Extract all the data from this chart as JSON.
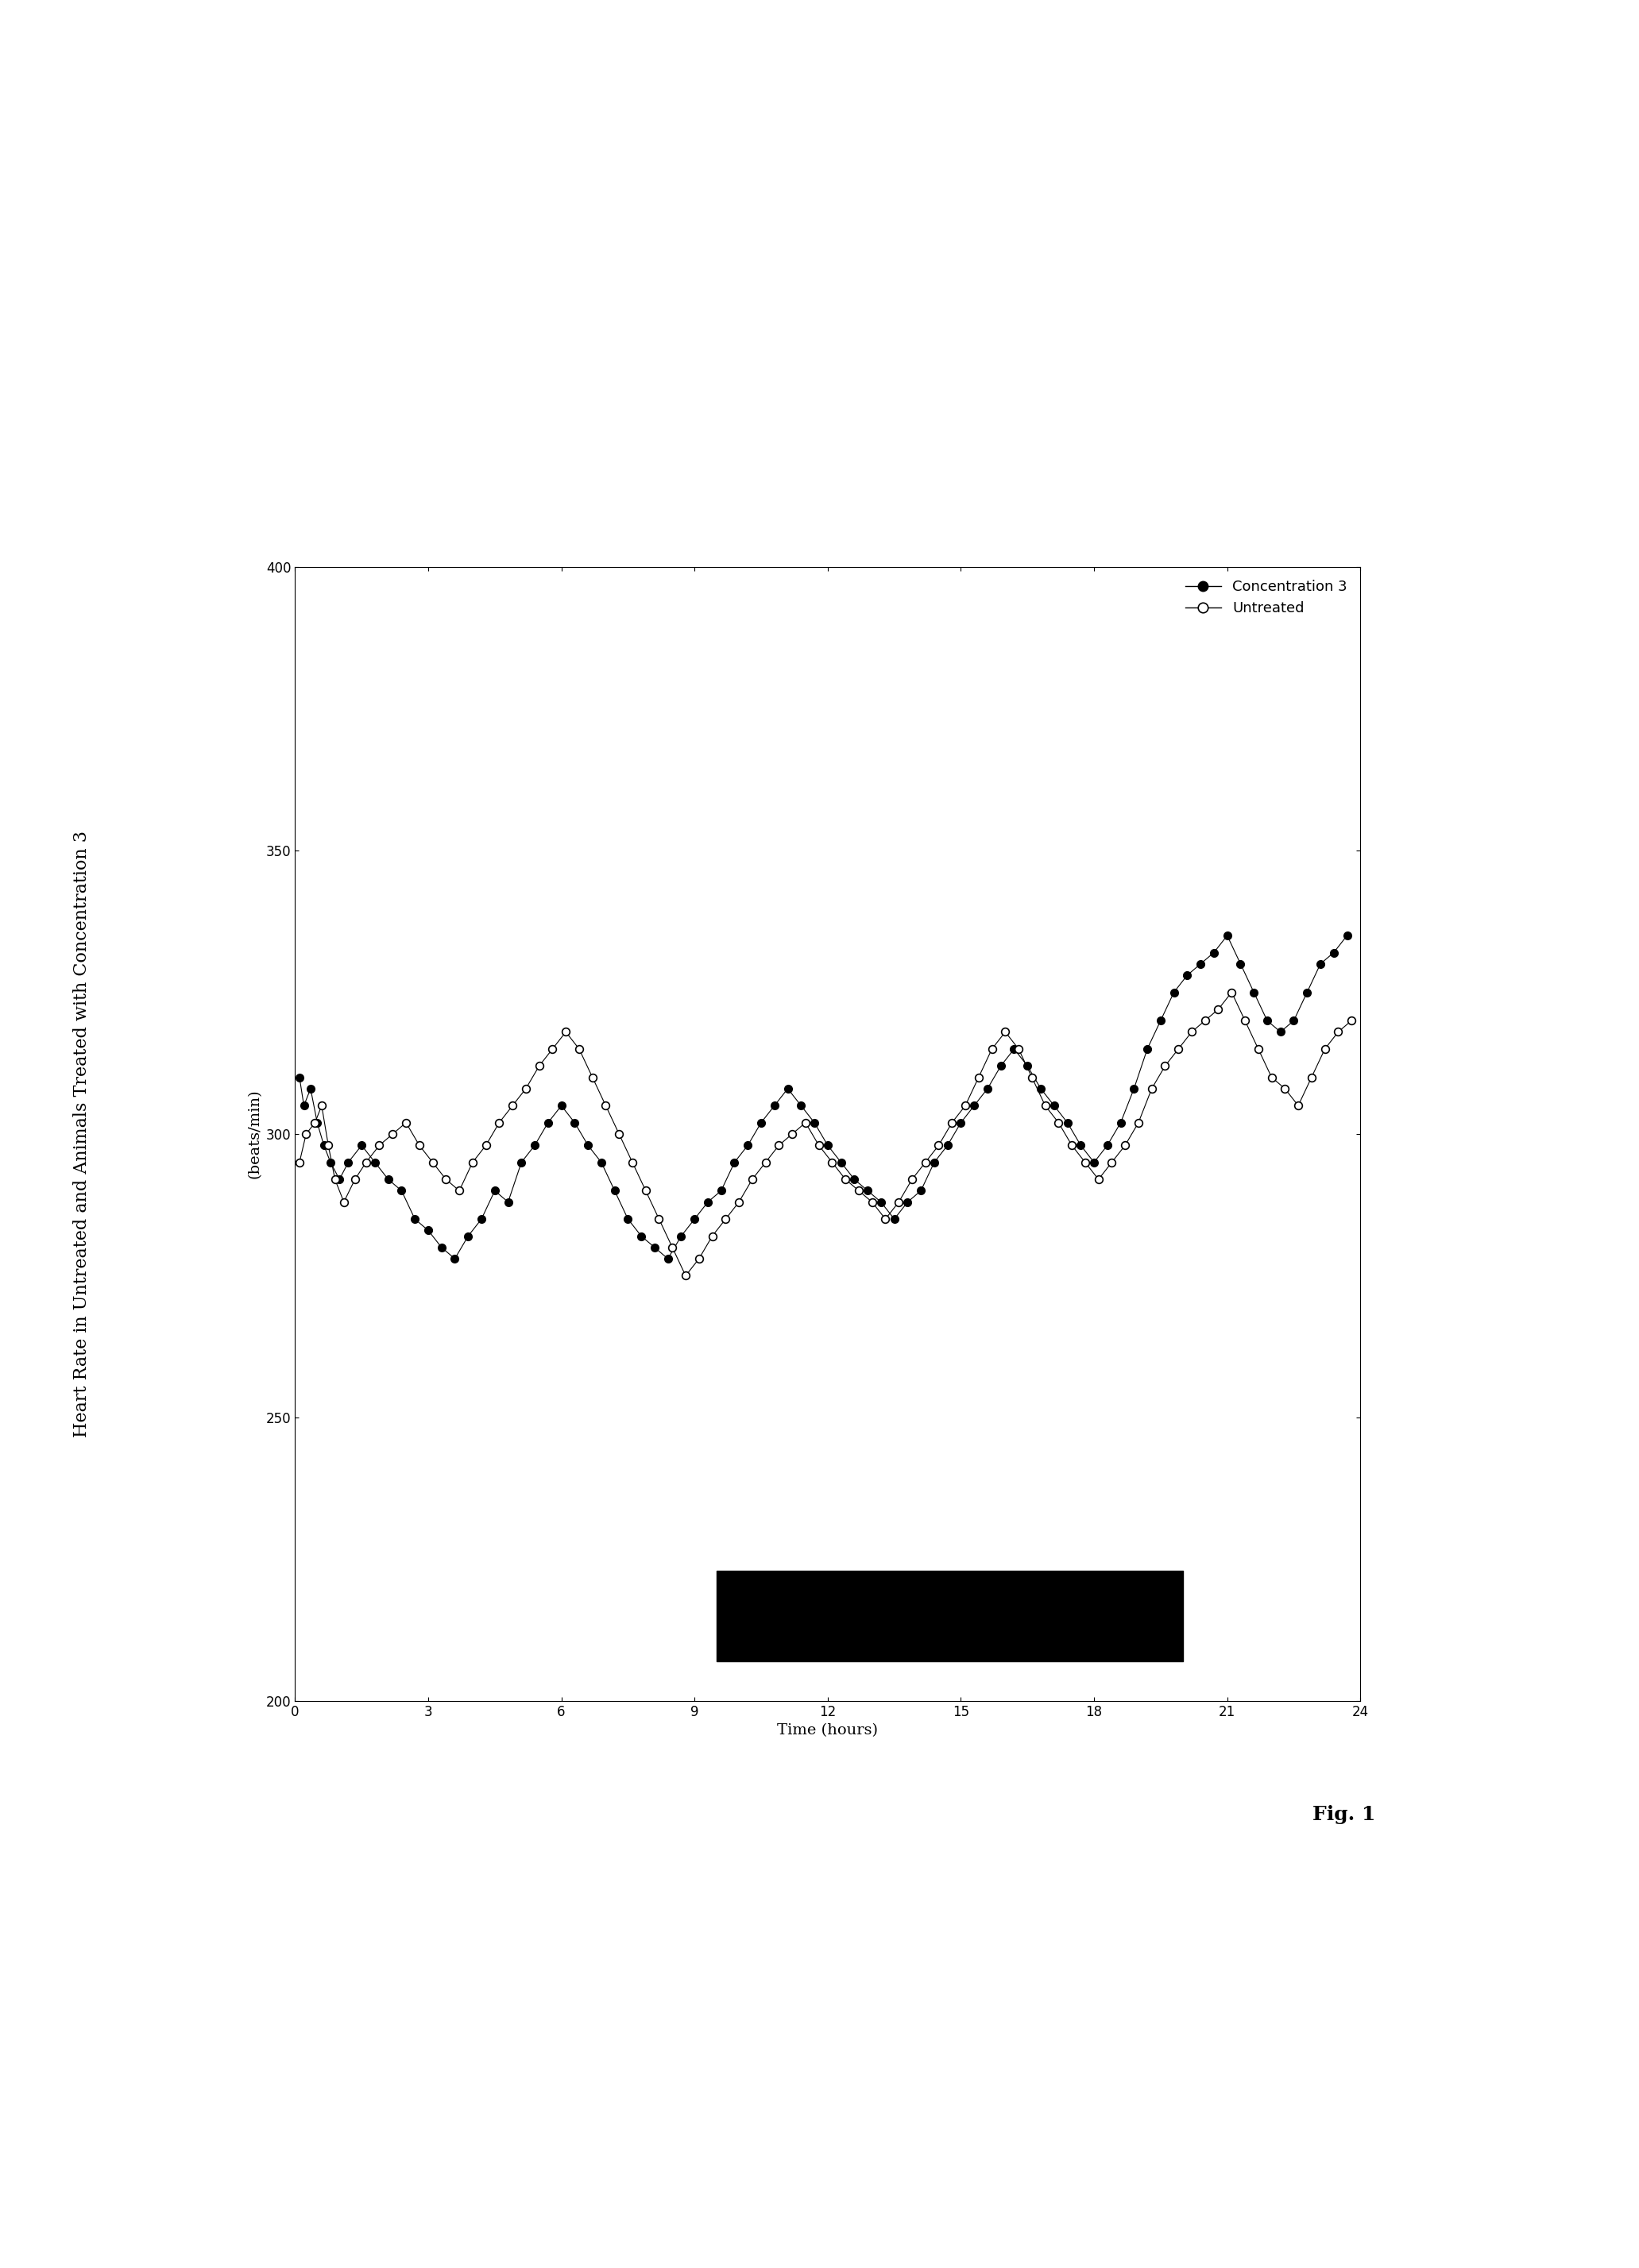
{
  "title": "Heart Rate in Untreated and Animals Treated with Concentration 3",
  "xlabel": "Time (hours)",
  "ylabel": "(beats/min)",
  "fig_label": "Fig. 1",
  "xlim": [
    0,
    24
  ],
  "ylim": [
    200,
    400
  ],
  "xticks": [
    0,
    3,
    6,
    9,
    12,
    15,
    18,
    21,
    24
  ],
  "yticks": [
    200,
    250,
    300,
    350,
    400
  ],
  "conc3_x": [
    0.1,
    0.2,
    0.35,
    0.5,
    0.65,
    0.8,
    1.0,
    1.2,
    1.5,
    1.8,
    2.1,
    2.4,
    2.7,
    3.0,
    3.3,
    3.6,
    3.9,
    4.2,
    4.5,
    4.8,
    5.1,
    5.4,
    5.7,
    6.0,
    6.3,
    6.6,
    6.9,
    7.2,
    7.5,
    7.8,
    8.1,
    8.4,
    8.7,
    9.0,
    9.3,
    9.6,
    9.9,
    10.2,
    10.5,
    10.8,
    11.1,
    11.4,
    11.7,
    12.0,
    12.3,
    12.6,
    12.9,
    13.2,
    13.5,
    13.8,
    14.1,
    14.4,
    14.7,
    15.0,
    15.3,
    15.6,
    15.9,
    16.2,
    16.5,
    16.8,
    17.1,
    17.4,
    17.7,
    18.0,
    18.3,
    18.6,
    18.9,
    19.2,
    19.5,
    19.8,
    20.1,
    20.4,
    20.7,
    21.0,
    21.3,
    21.6,
    21.9,
    22.2,
    22.5,
    22.8,
    23.1,
    23.4,
    23.7
  ],
  "conc3_y": [
    310,
    305,
    308,
    302,
    298,
    295,
    292,
    295,
    298,
    295,
    292,
    290,
    285,
    283,
    280,
    278,
    282,
    285,
    290,
    288,
    295,
    298,
    302,
    305,
    302,
    298,
    295,
    290,
    285,
    282,
    280,
    278,
    282,
    285,
    288,
    290,
    295,
    298,
    302,
    305,
    308,
    305,
    302,
    298,
    295,
    292,
    290,
    288,
    285,
    288,
    290,
    295,
    298,
    302,
    305,
    308,
    312,
    315,
    312,
    308,
    305,
    302,
    298,
    295,
    298,
    302,
    308,
    315,
    320,
    325,
    328,
    330,
    332,
    335,
    330,
    325,
    320,
    318,
    320,
    325,
    330,
    332,
    335
  ],
  "untreated_x": [
    0.1,
    0.25,
    0.45,
    0.6,
    0.75,
    0.9,
    1.1,
    1.35,
    1.6,
    1.9,
    2.2,
    2.5,
    2.8,
    3.1,
    3.4,
    3.7,
    4.0,
    4.3,
    4.6,
    4.9,
    5.2,
    5.5,
    5.8,
    6.1,
    6.4,
    6.7,
    7.0,
    7.3,
    7.6,
    7.9,
    8.2,
    8.5,
    8.8,
    9.1,
    9.4,
    9.7,
    10.0,
    10.3,
    10.6,
    10.9,
    11.2,
    11.5,
    11.8,
    12.1,
    12.4,
    12.7,
    13.0,
    13.3,
    13.6,
    13.9,
    14.2,
    14.5,
    14.8,
    15.1,
    15.4,
    15.7,
    16.0,
    16.3,
    16.6,
    16.9,
    17.2,
    17.5,
    17.8,
    18.1,
    18.4,
    18.7,
    19.0,
    19.3,
    19.6,
    19.9,
    20.2,
    20.5,
    20.8,
    21.1,
    21.4,
    21.7,
    22.0,
    22.3,
    22.6,
    22.9,
    23.2,
    23.5,
    23.8
  ],
  "untreated_y": [
    295,
    300,
    302,
    305,
    298,
    292,
    288,
    292,
    295,
    298,
    300,
    302,
    298,
    295,
    292,
    290,
    295,
    298,
    302,
    305,
    308,
    312,
    315,
    318,
    315,
    310,
    305,
    300,
    295,
    290,
    285,
    280,
    275,
    278,
    282,
    285,
    288,
    292,
    295,
    298,
    300,
    302,
    298,
    295,
    292,
    290,
    288,
    285,
    288,
    292,
    295,
    298,
    302,
    305,
    310,
    315,
    318,
    315,
    310,
    305,
    302,
    298,
    295,
    292,
    295,
    298,
    302,
    308,
    312,
    315,
    318,
    320,
    322,
    325,
    320,
    315,
    310,
    308,
    305,
    310,
    315,
    318,
    320
  ],
  "dark_bar_x_start": 9.5,
  "dark_bar_x_end": 20.0,
  "dark_bar_y": 215,
  "background_color": "#ffffff",
  "line_color": "#000000",
  "conc3_marker": "o",
  "conc3_marker_color": "#000000",
  "untreated_marker": "o",
  "untreated_marker_facecolor": "#ffffff",
  "untreated_marker_edgecolor": "#000000"
}
